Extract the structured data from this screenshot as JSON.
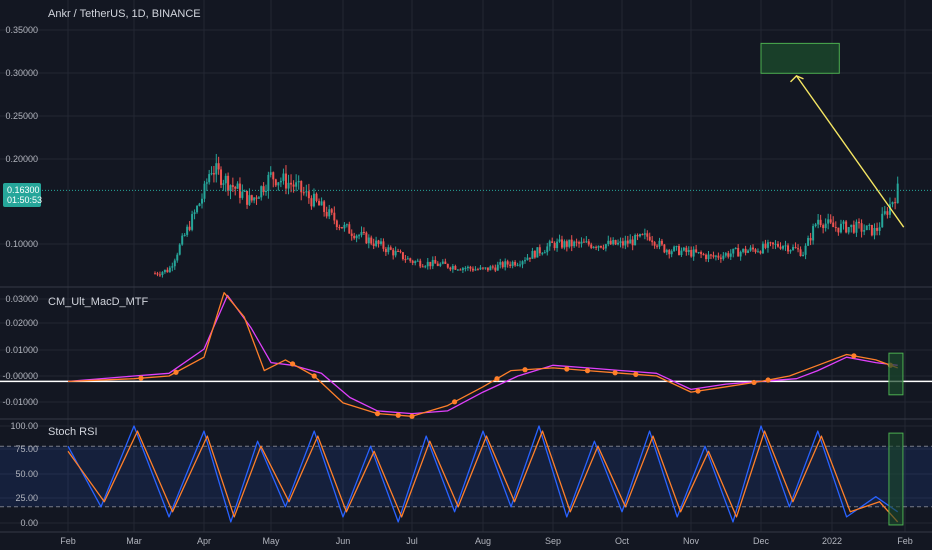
{
  "header": {
    "title": "Ankr / TetherUS, 1D, BINANCE"
  },
  "colors": {
    "background": "#131722",
    "grid": "#232733",
    "up": "#26a69a",
    "down": "#ef5350",
    "macd": "#e040fb",
    "signal": "#ff7f2a",
    "stoch_k": "#2962ff",
    "stoch_d": "#ff7f2a",
    "target_fill": "#1b4a2c",
    "target_border": "#4caf50",
    "arrow": "#f5e663",
    "price_tag": "#26a69a"
  },
  "price_tag": {
    "price": "0.16300",
    "countdown": "01:50:53"
  },
  "chart_data": [
    {
      "type": "candlestick",
      "title": "Ankr / TetherUS, 1D, BINANCE",
      "ylim": [
        0.05,
        0.36
      ],
      "y_ticks": [
        "0.35000",
        "0.30000",
        "0.25000",
        "0.20000",
        "0.10000"
      ],
      "x_ticks": [
        "Feb",
        "Mar",
        "Apr",
        "May",
        "Jun",
        "Jul",
        "Aug",
        "Sep",
        "Oct",
        "Nov",
        "Dec",
        "2022",
        "Feb"
      ],
      "last_price": 0.163,
      "target_zone": {
        "price_low": 0.3,
        "price_high": 0.335
      },
      "close_path": [
        [
          0,
          0.05
        ],
        [
          1.0,
          0.06
        ],
        [
          1.5,
          0.07
        ],
        [
          2.0,
          0.16
        ],
        [
          2.1,
          0.19
        ],
        [
          2.4,
          0.17
        ],
        [
          2.7,
          0.15
        ],
        [
          3.0,
          0.18
        ],
        [
          3.3,
          0.17
        ],
        [
          3.6,
          0.15
        ],
        [
          4.0,
          0.12
        ],
        [
          4.5,
          0.1
        ],
        [
          5.0,
          0.08
        ],
        [
          5.5,
          0.075
        ],
        [
          6.0,
          0.07
        ],
        [
          6.5,
          0.08
        ],
        [
          7.0,
          0.1
        ],
        [
          7.5,
          0.1
        ],
        [
          8.0,
          0.1
        ],
        [
          8.4,
          0.11
        ],
        [
          8.6,
          0.095
        ],
        [
          9.0,
          0.09
        ],
        [
          9.3,
          0.085
        ],
        [
          9.6,
          0.09
        ],
        [
          10.0,
          0.095
        ],
        [
          10.3,
          0.1
        ],
        [
          10.6,
          0.09
        ],
        [
          10.8,
          0.13
        ],
        [
          11.0,
          0.12
        ],
        [
          11.3,
          0.12
        ],
        [
          11.6,
          0.115
        ],
        [
          11.9,
          0.163
        ]
      ]
    },
    {
      "type": "line",
      "title": "CM_Ult_MacD_MTF",
      "ylim": [
        -0.014,
        0.034
      ],
      "y_ticks": [
        "0.03000",
        "0.02000",
        "0.01000",
        "-0.00000",
        "-0.01000"
      ],
      "series": [
        {
          "name": "",
          "color": "#e040fb",
          "x": [
            0,
            1,
            1.5,
            2.0,
            2.35,
            2.7,
            3.0,
            3.3,
            3.7,
            4.1,
            4.5,
            5.0,
            5.5,
            6.0,
            6.5,
            7.0,
            7.5,
            8.0,
            8.5,
            9.0,
            9.5,
            10.0,
            10.5,
            10.8,
            11.2,
            11.6,
            11.9
          ],
          "values": [
            0.0,
            0.002,
            0.003,
            0.012,
            0.032,
            0.02,
            0.007,
            0.006,
            0.003,
            -0.006,
            -0.011,
            -0.012,
            -0.011,
            -0.004,
            0.002,
            0.006,
            0.005,
            0.004,
            0.003,
            -0.003,
            -0.001,
            0.0,
            0.001,
            0.004,
            0.009,
            0.007,
            0.006
          ]
        },
        {
          "name": "",
          "color": "#ff7f2a",
          "x": [
            0,
            1,
            1.5,
            2.0,
            2.3,
            2.6,
            2.9,
            3.2,
            3.6,
            4.0,
            4.5,
            5.0,
            5.5,
            6.0,
            6.4,
            7.0,
            7.5,
            8.0,
            8.5,
            9.0,
            9.5,
            10.0,
            10.4,
            10.8,
            11.2,
            11.6,
            11.9
          ],
          "values": [
            0.0,
            0.001,
            0.002,
            0.009,
            0.033,
            0.024,
            0.004,
            0.008,
            0.002,
            -0.008,
            -0.012,
            -0.013,
            -0.009,
            -0.002,
            0.004,
            0.005,
            0.004,
            0.003,
            0.002,
            -0.004,
            -0.002,
            0.0,
            0.002,
            0.006,
            0.01,
            0.008,
            0.005
          ]
        }
      ]
    },
    {
      "type": "line",
      "title": "Stoch RSI",
      "ylim": [
        -5,
        105
      ],
      "y_ticks": [
        "100.00",
        "75.00",
        "50.00",
        "25.00",
        "0.00"
      ],
      "bands": [
        20,
        80
      ],
      "series": [
        {
          "name": "",
          "color": "#2962ff",
          "x": [
            0,
            0.5,
            1.0,
            1.5,
            2.0,
            2.4,
            2.8,
            3.2,
            3.6,
            4.0,
            4.4,
            4.8,
            5.2,
            5.6,
            6.0,
            6.4,
            6.8,
            7.2,
            7.6,
            8.0,
            8.4,
            8.8,
            9.2,
            9.6,
            10.0,
            10.4,
            10.8,
            11.2,
            11.6,
            11.9
          ],
          "values": [
            80,
            20,
            100,
            10,
            95,
            5,
            85,
            20,
            95,
            10,
            80,
            5,
            90,
            15,
            95,
            20,
            100,
            10,
            85,
            15,
            95,
            10,
            80,
            5,
            100,
            20,
            95,
            10,
            30,
            15
          ]
        },
        {
          "name": "",
          "color": "#ff7f2a",
          "x": [
            0,
            0.55,
            1.05,
            1.55,
            2.05,
            2.45,
            2.85,
            3.25,
            3.65,
            4.05,
            4.45,
            4.85,
            5.25,
            5.65,
            6.05,
            6.45,
            6.85,
            7.25,
            7.65,
            8.05,
            8.45,
            8.85,
            9.25,
            9.65,
            10.05,
            10.45,
            10.85,
            11.25,
            11.65,
            11.9
          ],
          "values": [
            75,
            25,
            95,
            15,
            90,
            10,
            80,
            25,
            90,
            15,
            75,
            10,
            85,
            20,
            90,
            25,
            95,
            15,
            80,
            20,
            90,
            15,
            75,
            10,
            95,
            25,
            90,
            15,
            25,
            5
          ]
        }
      ]
    }
  ]
}
